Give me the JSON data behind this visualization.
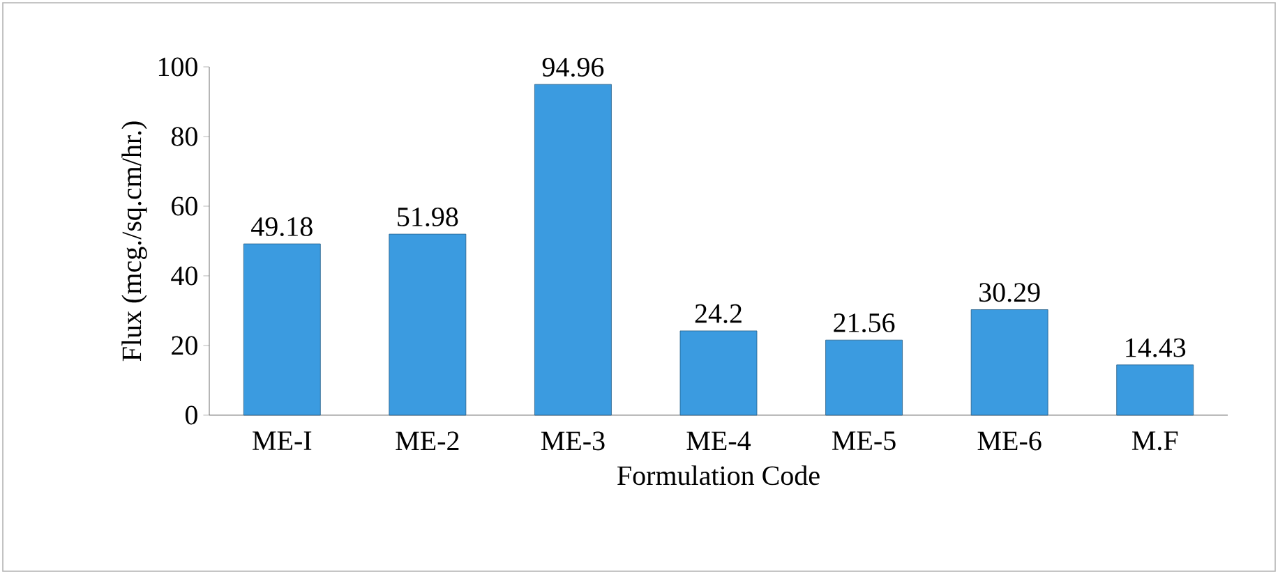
{
  "chart_data": {
    "type": "bar",
    "xlabel": "Formulation Code",
    "ylabel": "Flux (mcg./sq.cm/hr.)",
    "categories": [
      "ME-I",
      "ME-2",
      "ME-3",
      "ME-4",
      "ME-5",
      "ME-6",
      "M.F"
    ],
    "values": [
      49.18,
      51.98,
      94.96,
      24.2,
      21.56,
      30.29,
      14.43
    ],
    "color": "#3b9be0",
    "ylim": [
      0,
      100
    ],
    "yticks": [
      0,
      20,
      40,
      60,
      80,
      100
    ],
    "data_labels": true,
    "grid": false
  }
}
